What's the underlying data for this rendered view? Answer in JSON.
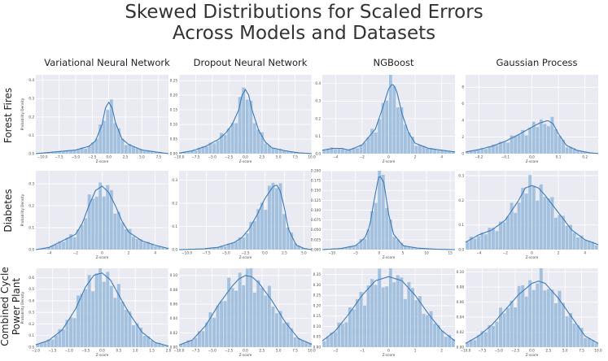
{
  "title_line1": "Skewed Distributions for Scaled Errors",
  "title_line2": "Across Models and Datasets",
  "columns": [
    "Variational Neural Network",
    "Dropout Neural Network",
    "NGBoost",
    "Gaussian Process"
  ],
  "rows": [
    "Forest Fires",
    "Diabetes",
    "Combined Cycle",
    "Power Plant"
  ],
  "colors": {
    "bar": "#9fbfdc",
    "line": "#3b7ab8",
    "panel_bg": "#eaeaf2",
    "grid": "#ffffff"
  },
  "chart_data": [
    {
      "type": "bar",
      "row": "Forest Fires",
      "column": "Variational Neural Network",
      "xlabel": "Z-score",
      "ylabel": "Probability Density",
      "xticks": [
        -10.0,
        -7.5,
        -5.0,
        -2.5,
        0.0,
        2.5,
        5.0,
        7.5
      ],
      "xtick_labels": [
        "−10.0",
        "−7.5",
        "−5.0",
        "−2.5",
        "0.0",
        "2.5",
        "5.0",
        "7.5"
      ],
      "yticks": [
        0.0,
        0.1,
        0.2,
        0.3,
        0.4
      ],
      "ytick_labels": [
        "0.0",
        "0.1",
        "0.2",
        "0.3",
        "0.4"
      ],
      "xlim": [
        -11,
        9
      ],
      "ylim": [
        0,
        0.43
      ],
      "kde_x": [
        -11,
        -8,
        -5,
        -3,
        -2,
        -1,
        -0.5,
        0,
        0.5,
        1,
        2,
        3,
        5,
        8,
        9
      ],
      "kde_y": [
        0.0,
        0.01,
        0.02,
        0.04,
        0.07,
        0.16,
        0.25,
        0.28,
        0.25,
        0.17,
        0.08,
        0.05,
        0.02,
        0.005,
        0.0
      ]
    },
    {
      "type": "bar",
      "row": "Forest Fires",
      "column": "Dropout Neural Network",
      "xlabel": "Z-score",
      "ylabel": "",
      "xticks": [
        -10.0,
        -7.5,
        -5.0,
        -2.5,
        0.0,
        2.5,
        5.0,
        7.5,
        10.0
      ],
      "xtick_labels": [
        "−10.0",
        "−7.5",
        "−5.0",
        "−2.5",
        "0.0",
        "2.5",
        "5.0",
        "7.5",
        "10.0"
      ],
      "yticks": [
        0.0,
        0.05,
        0.1,
        0.15,
        0.2,
        0.25
      ],
      "ytick_labels": [
        "0.00",
        "0.05",
        "0.10",
        "0.15",
        "0.20",
        "0.25"
      ],
      "xlim": [
        -10,
        10
      ],
      "ylim": [
        0,
        0.27
      ],
      "kde_x": [
        -10,
        -8,
        -6,
        -4,
        -3,
        -2,
        -1,
        -0.5,
        0,
        0.5,
        1,
        2,
        3,
        4,
        6,
        8,
        10
      ],
      "kde_y": [
        0.002,
        0.01,
        0.025,
        0.05,
        0.07,
        0.1,
        0.15,
        0.2,
        0.22,
        0.2,
        0.15,
        0.08,
        0.04,
        0.02,
        0.01,
        0.003,
        0.0
      ]
    },
    {
      "type": "bar",
      "row": "Forest Fires",
      "column": "NGBoost",
      "xlabel": "Z-score",
      "ylabel": "",
      "xticks": [
        -4,
        -2,
        0,
        2,
        4
      ],
      "xtick_labels": [
        "−4",
        "−2",
        "0",
        "2",
        "4"
      ],
      "yticks": [
        0.0,
        0.1,
        0.2,
        0.3,
        0.4
      ],
      "ytick_labels": [
        "0.0",
        "0.1",
        "0.2",
        "0.3",
        "0.4"
      ],
      "xlim": [
        -5,
        5
      ],
      "ylim": [
        0,
        0.45
      ],
      "kde_x": [
        -5,
        -4.2,
        -3.5,
        -3,
        -2,
        -1,
        -0.5,
        0,
        0.3,
        0.6,
        1,
        1.5,
        2,
        3,
        4,
        5
      ],
      "kde_y": [
        0.02,
        0.03,
        0.03,
        0.02,
        0.05,
        0.14,
        0.25,
        0.37,
        0.4,
        0.36,
        0.23,
        0.12,
        0.06,
        0.03,
        0.02,
        0.01
      ]
    },
    {
      "type": "bar",
      "row": "Forest Fires",
      "column": "Gaussian Process",
      "xlabel": "Z-score",
      "ylabel": "",
      "xticks": [
        -0.2,
        -0.1,
        0.0,
        0.1,
        0.2
      ],
      "xtick_labels": [
        "−0.2",
        "−0.1",
        "0.0",
        "0.1",
        "0.2"
      ],
      "yticks": [
        0,
        2,
        4,
        6,
        8
      ],
      "ytick_labels": [
        "0",
        "2",
        "4",
        "6",
        "8"
      ],
      "xlim": [
        -0.25,
        0.25
      ],
      "ylim": [
        0,
        9.5
      ],
      "kde_x": [
        -0.25,
        -0.2,
        -0.15,
        -0.1,
        -0.05,
        0,
        0.03,
        0.06,
        0.08,
        0.1,
        0.13,
        0.17,
        0.22,
        0.25
      ],
      "kde_y": [
        0.2,
        0.5,
        0.9,
        1.5,
        2.3,
        3.2,
        3.7,
        4.0,
        3.6,
        2.4,
        1.0,
        0.4,
        0.1,
        0.02
      ]
    },
    {
      "type": "bar",
      "row": "Diabetes",
      "column": "Variational Neural Network",
      "xlabel": "Z-score",
      "ylabel": "Probability Density",
      "xticks": [
        -4,
        -2,
        0,
        2,
        4
      ],
      "xtick_labels": [
        "−4",
        "−2",
        "0",
        "2",
        "4"
      ],
      "yticks": [
        0.0,
        0.1,
        0.2,
        0.3
      ],
      "ytick_labels": [
        "0.0",
        "0.1",
        "0.2",
        "0.3"
      ],
      "xlim": [
        -5,
        5
      ],
      "ylim": [
        0,
        0.36
      ],
      "kde_x": [
        -5,
        -4,
        -3,
        -2,
        -1.5,
        -1,
        -0.5,
        0,
        0.5,
        1,
        1.5,
        2,
        3,
        4,
        5
      ],
      "kde_y": [
        0.0,
        0.01,
        0.04,
        0.07,
        0.12,
        0.2,
        0.27,
        0.29,
        0.26,
        0.2,
        0.13,
        0.08,
        0.04,
        0.02,
        0.005
      ]
    },
    {
      "type": "bar",
      "row": "Diabetes",
      "column": "Dropout Neural Network",
      "xlabel": "Z-score",
      "ylabel": "",
      "xticks": [
        -10.0,
        -7.5,
        -5.0,
        -2.5,
        0.0,
        2.5,
        5.0
      ],
      "xtick_labels": [
        "−10.0",
        "−7.5",
        "−5.0",
        "−2.5",
        "0.0",
        "2.5",
        "5.0"
      ],
      "yticks": [
        0.0,
        0.1,
        0.2,
        0.3
      ],
      "ytick_labels": [
        "0.0",
        "0.1",
        "0.2",
        "0.3"
      ],
      "xlim": [
        -11,
        6
      ],
      "ylim": [
        0,
        0.34
      ],
      "kde_x": [
        -11,
        -8,
        -6,
        -4,
        -3,
        -2,
        -1,
        0,
        1,
        1.5,
        2,
        2.5,
        3,
        4,
        5,
        6
      ],
      "kde_y": [
        0.0,
        0.003,
        0.01,
        0.03,
        0.05,
        0.09,
        0.15,
        0.22,
        0.27,
        0.28,
        0.25,
        0.18,
        0.09,
        0.02,
        0.005,
        0.0
      ]
    },
    {
      "type": "bar",
      "row": "Diabetes",
      "column": "NGBoost",
      "xlabel": "Z-score",
      "ylabel": "",
      "xticks": [
        -10,
        -5,
        0,
        5,
        10,
        15
      ],
      "xtick_labels": [
        "−10",
        "−5",
        "0",
        "5",
        "10",
        "15"
      ],
      "yticks": [
        0.0,
        0.025,
        0.05,
        0.075,
        0.1,
        0.125,
        0.15,
        0.175,
        0.2
      ],
      "ytick_labels": [
        "0.000",
        "0.025",
        "0.050",
        "0.075",
        "0.100",
        "0.125",
        "0.150",
        "0.175",
        "0.200"
      ],
      "xlim": [
        -12,
        16
      ],
      "ylim": [
        0,
        0.2
      ],
      "kde_x": [
        -12,
        -8,
        -5,
        -3,
        -2,
        -1,
        0,
        1,
        2,
        3,
        5,
        8,
        12,
        16
      ],
      "kde_y": [
        0.0,
        0.003,
        0.01,
        0.03,
        0.06,
        0.13,
        0.19,
        0.17,
        0.09,
        0.04,
        0.01,
        0.004,
        0.001,
        0.0
      ]
    },
    {
      "type": "bar",
      "row": "Diabetes",
      "column": "Gaussian Process",
      "xlabel": "Z-score",
      "ylabel": "",
      "xticks": [
        -4,
        -2,
        0,
        2,
        4
      ],
      "xtick_labels": [
        "−4",
        "−2",
        "0",
        "2",
        "4"
      ],
      "yticks": [
        0.0,
        0.1,
        0.2,
        0.3
      ],
      "ytick_labels": [
        "0.0",
        "0.1",
        "0.2",
        "0.3"
      ],
      "xlim": [
        -5,
        5
      ],
      "ylim": [
        0,
        0.32
      ],
      "kde_x": [
        -5,
        -4,
        -3,
        -2,
        -1,
        -0.5,
        0,
        0.5,
        1,
        2,
        3,
        4,
        5
      ],
      "kde_y": [
        0.03,
        0.06,
        0.08,
        0.12,
        0.2,
        0.25,
        0.26,
        0.25,
        0.22,
        0.15,
        0.08,
        0.04,
        0.02
      ]
    },
    {
      "type": "bar",
      "row": "Combined Cycle Power Plant",
      "column": "Variational Neural Network",
      "xlabel": "Z-score",
      "ylabel": "Probability Density",
      "xticks": [
        -2.0,
        -1.5,
        -1.0,
        -0.5,
        0.0,
        0.5,
        1.0,
        1.5,
        2.0
      ],
      "xtick_labels": [
        "−2.0",
        "−1.5",
        "−1.0",
        "−0.5",
        "0.0",
        "0.5",
        "1.0",
        "1.5",
        "2.0"
      ],
      "yticks": [
        0.0,
        0.1,
        0.2,
        0.3,
        0.4,
        0.5,
        0.6
      ],
      "ytick_labels": [
        "0.0",
        "0.1",
        "0.2",
        "0.3",
        "0.4",
        "0.5",
        "0.6"
      ],
      "xlim": [
        -2,
        2
      ],
      "ylim": [
        0,
        0.68
      ],
      "kde_x": [
        -2,
        -1.6,
        -1.2,
        -0.8,
        -0.5,
        -0.25,
        0,
        0.25,
        0.5,
        0.8,
        1.2,
        1.6,
        2
      ],
      "kde_y": [
        0.02,
        0.06,
        0.15,
        0.33,
        0.52,
        0.62,
        0.64,
        0.58,
        0.45,
        0.3,
        0.13,
        0.04,
        0.01
      ]
    },
    {
      "type": "bar",
      "row": "Combined Cycle Power Plant",
      "column": "Dropout Neural Network",
      "xlabel": "Z-score",
      "ylabel": "",
      "xticks": [
        -10.0,
        -7.5,
        -5.0,
        -2.5,
        0.0,
        2.5,
        5.0,
        7.5,
        10.0
      ],
      "xtick_labels": [
        "−10.0",
        "−7.5",
        "−5.0",
        "−2.5",
        "0.0",
        "2.5",
        "5.0",
        "7.5",
        "10.0"
      ],
      "yticks": [
        0.0,
        0.02,
        0.04,
        0.06,
        0.08,
        0.1
      ],
      "ytick_labels": [
        "0.00",
        "0.02",
        "0.04",
        "0.06",
        "0.08",
        "0.10"
      ],
      "xlim": [
        -10,
        10
      ],
      "ylim": [
        0,
        0.11
      ],
      "kde_x": [
        -10,
        -8,
        -6,
        -4,
        -2,
        -1,
        0,
        1,
        2,
        4,
        6,
        8,
        10
      ],
      "kde_y": [
        0.003,
        0.01,
        0.03,
        0.06,
        0.085,
        0.095,
        0.1,
        0.098,
        0.09,
        0.065,
        0.035,
        0.012,
        0.004
      ]
    },
    {
      "type": "bar",
      "row": "Combined Cycle Power Plant",
      "column": "NGBoost",
      "xlabel": "Z-score",
      "ylabel": "",
      "xticks": [
        -2,
        -1,
        0,
        1,
        2
      ],
      "xtick_labels": [
        "−2",
        "−1",
        "0",
        "1",
        "2"
      ],
      "yticks": [
        0.0,
        0.05,
        0.1,
        0.15,
        0.2,
        0.25,
        0.3,
        0.35
      ],
      "ytick_labels": [
        "0.00",
        "0.05",
        "0.10",
        "0.15",
        "0.20",
        "0.25",
        "0.30",
        "0.35"
      ],
      "xlim": [
        -2.5,
        2.5
      ],
      "ylim": [
        0,
        0.38
      ],
      "kde_x": [
        -2.5,
        -2,
        -1.5,
        -1,
        -0.5,
        0,
        0.5,
        1,
        1.5,
        2,
        2.5
      ],
      "kde_y": [
        0.03,
        0.08,
        0.16,
        0.25,
        0.32,
        0.34,
        0.32,
        0.25,
        0.16,
        0.08,
        0.03
      ]
    },
    {
      "type": "bar",
      "row": "Combined Cycle Power Plant",
      "column": "Gaussian Process",
      "xlabel": "Z-score",
      "ylabel": "",
      "xticks": [
        -10.0,
        -7.5,
        -5.0,
        -2.5,
        0.0,
        2.5,
        5.0,
        7.5,
        10.0
      ],
      "xtick_labels": [
        "−10.0",
        "−7.5",
        "−5.0",
        "−2.5",
        "0.0",
        "2.5",
        "5.0",
        "7.5",
        "10.0"
      ],
      "yticks": [
        0.0,
        0.02,
        0.04,
        0.06,
        0.08,
        0.1
      ],
      "ytick_labels": [
        "0.00",
        "0.02",
        "0.04",
        "0.06",
        "0.08",
        "0.10"
      ],
      "xlim": [
        -10,
        10
      ],
      "ylim": [
        0,
        0.105
      ],
      "kde_x": [
        -10,
        -8,
        -6,
        -4,
        -2,
        0,
        1,
        2,
        4,
        6,
        8,
        10
      ],
      "kde_y": [
        0.005,
        0.015,
        0.03,
        0.05,
        0.07,
        0.085,
        0.088,
        0.085,
        0.065,
        0.04,
        0.015,
        0.005
      ]
    }
  ]
}
